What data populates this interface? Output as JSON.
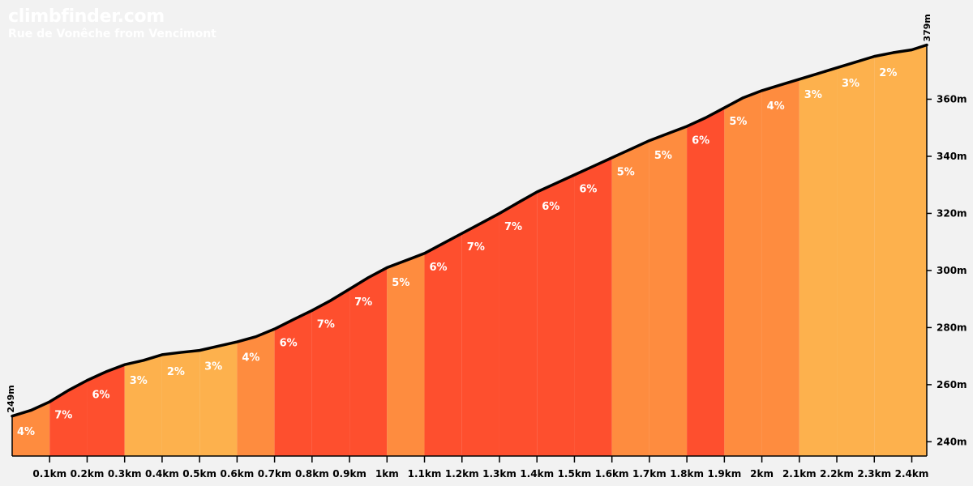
{
  "header": {
    "site": "climbfinder.com",
    "climb": "Rue de Vonêche from Vencimont"
  },
  "colors": {
    "background": "#f2f2f2",
    "grade_2_3": "#fdb14d",
    "grade_4_5": "#fe8c3f",
    "grade_6_7": "#fe4f2e",
    "profile_line": "#000000",
    "label": "#ffffff"
  },
  "chart_data": {
    "type": "area",
    "title": "Rue de Vonêche from Vencimont",
    "xlim": [
      0,
      2.44
    ],
    "ylim": [
      235,
      380
    ],
    "start_label": "249m",
    "end_label": "379m",
    "x_ticks": [
      {
        "value": 0.1,
        "label": "0.1km"
      },
      {
        "value": 0.2,
        "label": "0.2km"
      },
      {
        "value": 0.3,
        "label": "0.3km"
      },
      {
        "value": 0.4,
        "label": "0.4km"
      },
      {
        "value": 0.5,
        "label": "0.5km"
      },
      {
        "value": 0.6,
        "label": "0.6km"
      },
      {
        "value": 0.7,
        "label": "0.7km"
      },
      {
        "value": 0.8,
        "label": "0.8km"
      },
      {
        "value": 0.9,
        "label": "0.9km"
      },
      {
        "value": 1.0,
        "label": "1km"
      },
      {
        "value": 1.1,
        "label": "1.1km"
      },
      {
        "value": 1.2,
        "label": "1.2km"
      },
      {
        "value": 1.3,
        "label": "1.3km"
      },
      {
        "value": 1.4,
        "label": "1.4km"
      },
      {
        "value": 1.5,
        "label": "1.5km"
      },
      {
        "value": 1.6,
        "label": "1.6km"
      },
      {
        "value": 1.7,
        "label": "1.7km"
      },
      {
        "value": 1.8,
        "label": "1.8km"
      },
      {
        "value": 1.9,
        "label": "1.9km"
      },
      {
        "value": 2.0,
        "label": "2km"
      },
      {
        "value": 2.1,
        "label": "2.1km"
      },
      {
        "value": 2.2,
        "label": "2.2km"
      },
      {
        "value": 2.3,
        "label": "2.3km"
      },
      {
        "value": 2.4,
        "label": "2.4km"
      }
    ],
    "y_ticks": [
      {
        "value": 240,
        "label": "240m"
      },
      {
        "value": 260,
        "label": "260m"
      },
      {
        "value": 280,
        "label": "280m"
      },
      {
        "value": 300,
        "label": "300m"
      },
      {
        "value": 320,
        "label": "320m"
      },
      {
        "value": 340,
        "label": "340m"
      },
      {
        "value": 360,
        "label": "360m"
      }
    ],
    "segments": [
      {
        "from": 0.0,
        "to": 0.1,
        "grade": "4%",
        "color": "#fe8c3f"
      },
      {
        "from": 0.1,
        "to": 0.2,
        "grade": "7%",
        "color": "#fe4f2e"
      },
      {
        "from": 0.2,
        "to": 0.3,
        "grade": "6%",
        "color": "#fe4f2e"
      },
      {
        "from": 0.3,
        "to": 0.4,
        "grade": "3%",
        "color": "#fdb14d"
      },
      {
        "from": 0.4,
        "to": 0.5,
        "grade": "2%",
        "color": "#fdb14d"
      },
      {
        "from": 0.5,
        "to": 0.6,
        "grade": "3%",
        "color": "#fdb14d"
      },
      {
        "from": 0.6,
        "to": 0.7,
        "grade": "4%",
        "color": "#fe8c3f"
      },
      {
        "from": 0.7,
        "to": 0.8,
        "grade": "6%",
        "color": "#fe4f2e"
      },
      {
        "from": 0.8,
        "to": 0.9,
        "grade": "7%",
        "color": "#fe4f2e"
      },
      {
        "from": 0.9,
        "to": 1.0,
        "grade": "7%",
        "color": "#fe4f2e"
      },
      {
        "from": 1.0,
        "to": 1.1,
        "grade": "5%",
        "color": "#fe8c3f"
      },
      {
        "from": 1.1,
        "to": 1.2,
        "grade": "6%",
        "color": "#fe4f2e"
      },
      {
        "from": 1.2,
        "to": 1.3,
        "grade": "7%",
        "color": "#fe4f2e"
      },
      {
        "from": 1.3,
        "to": 1.4,
        "grade": "7%",
        "color": "#fe4f2e"
      },
      {
        "from": 1.4,
        "to": 1.5,
        "grade": "6%",
        "color": "#fe4f2e"
      },
      {
        "from": 1.5,
        "to": 1.6,
        "grade": "6%",
        "color": "#fe4f2e"
      },
      {
        "from": 1.6,
        "to": 1.7,
        "grade": "5%",
        "color": "#fe8c3f"
      },
      {
        "from": 1.7,
        "to": 1.8,
        "grade": "5%",
        "color": "#fe8c3f"
      },
      {
        "from": 1.8,
        "to": 1.9,
        "grade": "6%",
        "color": "#fe4f2e"
      },
      {
        "from": 1.9,
        "to": 2.0,
        "grade": "5%",
        "color": "#fe8c3f"
      },
      {
        "from": 2.0,
        "to": 2.1,
        "grade": "4%",
        "color": "#fe8c3f"
      },
      {
        "from": 2.1,
        "to": 2.2,
        "grade": "3%",
        "color": "#fdb14d"
      },
      {
        "from": 2.2,
        "to": 2.3,
        "grade": "3%",
        "color": "#fdb14d"
      },
      {
        "from": 2.3,
        "to": 2.44,
        "grade": "2%",
        "color": "#fdb14d"
      }
    ],
    "profile": [
      [
        0.0,
        249
      ],
      [
        0.05,
        251
      ],
      [
        0.1,
        254
      ],
      [
        0.15,
        258
      ],
      [
        0.2,
        261.5
      ],
      [
        0.25,
        264.5
      ],
      [
        0.3,
        267
      ],
      [
        0.35,
        268.5
      ],
      [
        0.4,
        270.5
      ],
      [
        0.45,
        271.3
      ],
      [
        0.5,
        272
      ],
      [
        0.55,
        273.5
      ],
      [
        0.6,
        275
      ],
      [
        0.65,
        276.8
      ],
      [
        0.7,
        279.5
      ],
      [
        0.75,
        282.8
      ],
      [
        0.8,
        286
      ],
      [
        0.85,
        289.5
      ],
      [
        0.9,
        293.5
      ],
      [
        0.95,
        297.5
      ],
      [
        1.0,
        301
      ],
      [
        1.05,
        303.5
      ],
      [
        1.1,
        306
      ],
      [
        1.15,
        309.5
      ],
      [
        1.2,
        313
      ],
      [
        1.25,
        316.5
      ],
      [
        1.3,
        320
      ],
      [
        1.35,
        323.8
      ],
      [
        1.4,
        327.5
      ],
      [
        1.45,
        330.5
      ],
      [
        1.5,
        333.5
      ],
      [
        1.55,
        336.5
      ],
      [
        1.6,
        339.5
      ],
      [
        1.65,
        342.5
      ],
      [
        1.7,
        345.5
      ],
      [
        1.75,
        348
      ],
      [
        1.8,
        350.5
      ],
      [
        1.85,
        353.5
      ],
      [
        1.9,
        357
      ],
      [
        1.95,
        360.5
      ],
      [
        2.0,
        363
      ],
      [
        2.05,
        365
      ],
      [
        2.1,
        367
      ],
      [
        2.15,
        369
      ],
      [
        2.2,
        371
      ],
      [
        2.25,
        373
      ],
      [
        2.3,
        375
      ],
      [
        2.35,
        376.3
      ],
      [
        2.4,
        377.3
      ],
      [
        2.44,
        379
      ]
    ]
  }
}
